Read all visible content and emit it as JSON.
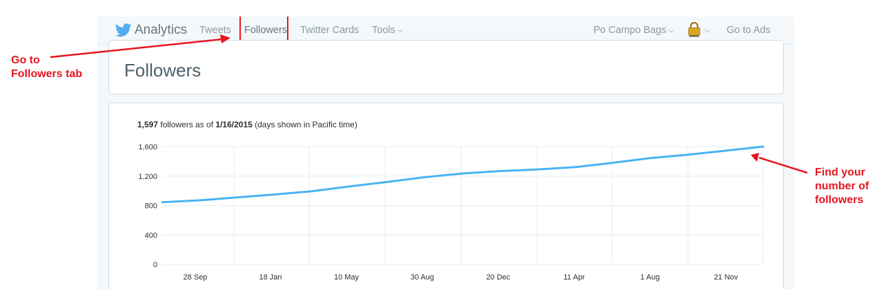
{
  "nav": {
    "brand": "Analytics",
    "items": [
      "Tweets",
      "Followers",
      "Twitter Cards",
      "Tools"
    ],
    "account": "Po Campo Bags",
    "ads": "Go to Ads"
  },
  "page_title": "Followers",
  "summary": {
    "count": "1,597",
    "middle": " followers as of ",
    "date": "1/16/2015",
    "note": " (days shown in Pacific time)"
  },
  "annotations": {
    "left": [
      "Go to",
      "Followers tab"
    ],
    "right": [
      "Find your",
      "number of",
      "followers"
    ]
  },
  "colors": {
    "line": "#4ab3f4",
    "annotation": "#e8141e",
    "brand": "#55acee"
  },
  "icons": [
    "twitter-bird-icon",
    "chevron-down-icon",
    "lock-avatar-icon"
  ],
  "chart_data": {
    "type": "line",
    "title": "",
    "xlabel": "",
    "ylabel": "",
    "ylim": [
      0,
      1600
    ],
    "y_ticks": [
      "0",
      "400",
      "800",
      "1,200",
      "1,600"
    ],
    "x_tick_labels": [
      "28 Sep",
      "18 Jan",
      "10 May",
      "30 Aug",
      "20 Dec",
      "11 Apr",
      "1 Aug",
      "21 Nov"
    ],
    "x": [
      "2011-09",
      "2011-09-28",
      "2011-11",
      "2012-01-18",
      "2012-03",
      "2012-05-10",
      "2012-07",
      "2012-08-30",
      "2012-10",
      "2012-12-20",
      "2013-02",
      "2013-04-11",
      "2013-06",
      "2013-08-01",
      "2013-10",
      "2013-11-21",
      "2014-01"
    ],
    "series": [
      {
        "values": [
          845,
          870,
          910,
          950,
          995,
          1060,
          1120,
          1185,
          1235,
          1268,
          1290,
          1322,
          1380,
          1445,
          1490,
          1545,
          1600
        ]
      }
    ],
    "grid": true
  }
}
